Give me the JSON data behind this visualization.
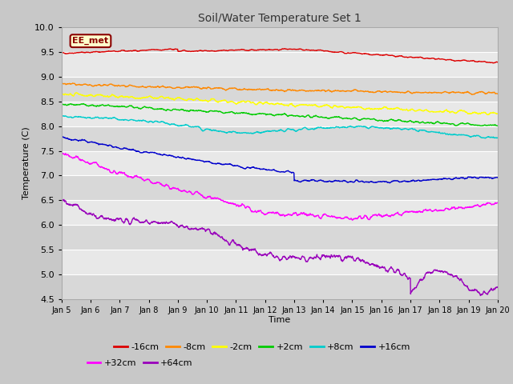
{
  "title": "Soil/Water Temperature Set 1",
  "xlabel": "Time",
  "ylabel": "Temperature (C)",
  "ylim": [
    4.5,
    10.0
  ],
  "xlim": [
    0,
    15
  ],
  "x_tick_labels": [
    "Jan 5",
    "Jan 6",
    "Jan 7",
    "Jan 8",
    "Jan 9",
    "Jan 10",
    "Jan 11",
    "Jan 12",
    "Jan 13",
    "Jan 14",
    "Jan 15",
    "Jan 16",
    "Jan 17",
    "Jan 18",
    "Jan 19",
    "Jan 20"
  ],
  "annotation_text": "EE_met",
  "annotation_bg": "#ffffcc",
  "annotation_border": "#8B0000",
  "series": [
    {
      "label": "-16cm",
      "color": "#dd0000"
    },
    {
      "label": "-8cm",
      "color": "#ff8800"
    },
    {
      "label": "-2cm",
      "color": "#ffff00"
    },
    {
      "label": "+2cm",
      "color": "#00cc00"
    },
    {
      "label": "+8cm",
      "color": "#00cccc"
    },
    {
      "label": "+16cm",
      "color": "#0000cc"
    },
    {
      "label": "+32cm",
      "color": "#ff00ff"
    },
    {
      "label": "+64cm",
      "color": "#9900bb"
    }
  ],
  "grid_color": "#ffffff",
  "fig_bg": "#c8c8c8",
  "ax_bg": "#e0e0e0",
  "line_width": 1.0
}
